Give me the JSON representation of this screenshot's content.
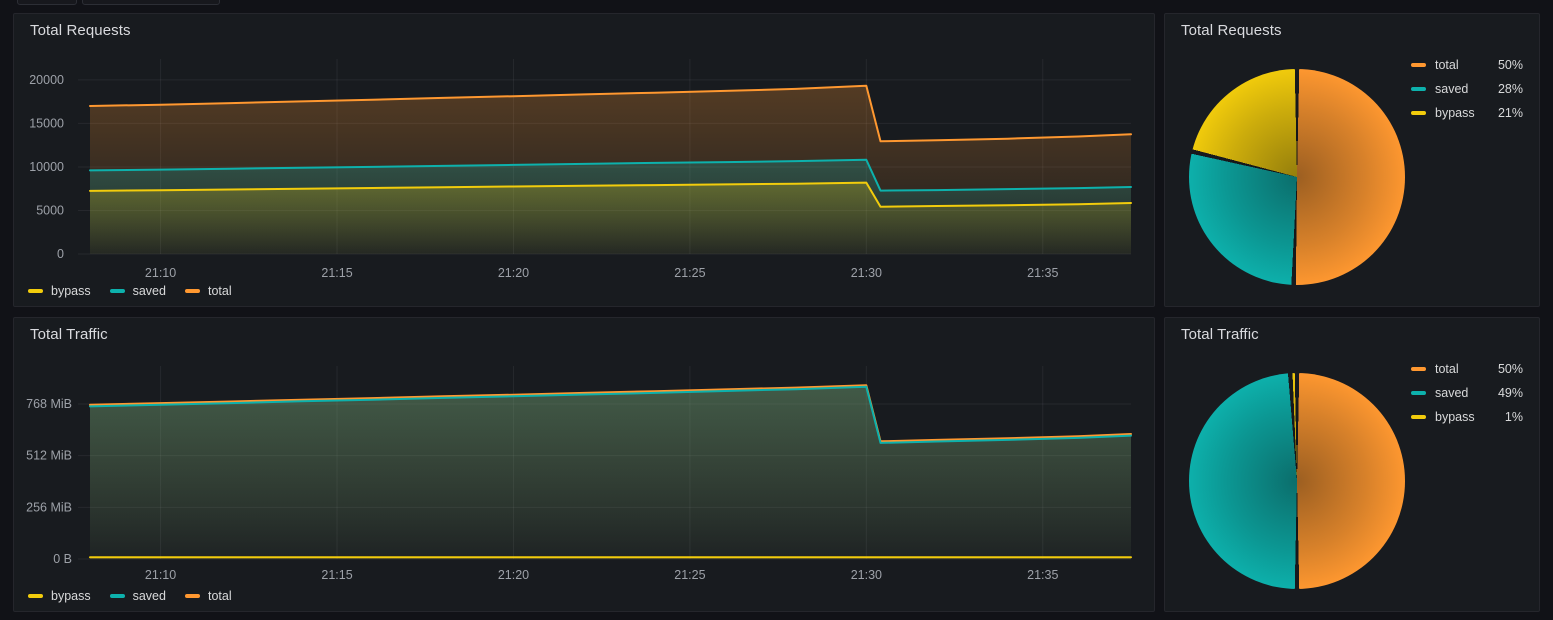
{
  "colors": {
    "page_bg": "#111217",
    "panel_bg": "#181b1f",
    "panel_border": "#25262c",
    "grid": "rgba(204,204,220,0.08)",
    "title_text": "#d9dade",
    "legend_text": "#d8d9da",
    "axis_text": "#9da1a8",
    "total": "#FF9830",
    "saved": "#0DB1AC",
    "bypass": "#F2CC0C"
  },
  "chart_data": [
    {
      "type": "line",
      "title": "Total Requests",
      "xlim": [
        0,
        29.5
      ],
      "ylim": [
        0,
        22400
      ],
      "x_ticks": [
        {
          "t": 2,
          "label": "21:10"
        },
        {
          "t": 7,
          "label": "21:15"
        },
        {
          "t": 12,
          "label": "21:20"
        },
        {
          "t": 17,
          "label": "21:25"
        },
        {
          "t": 22,
          "label": "21:30"
        },
        {
          "t": 27,
          "label": "21:35"
        }
      ],
      "y_ticks": [
        {
          "v": 0,
          "label": "0"
        },
        {
          "v": 5000,
          "label": "5000"
        },
        {
          "v": 10000,
          "label": "10000"
        },
        {
          "v": 15000,
          "label": "15000"
        },
        {
          "v": 20000,
          "label": "20000"
        }
      ],
      "x": [
        0,
        2,
        4,
        6,
        8,
        10,
        12,
        14,
        16,
        18,
        20,
        22,
        22.4,
        24,
        26,
        28,
        29.5
      ],
      "series": [
        {
          "name": "total",
          "color": "#FF9830",
          "values": [
            17000,
            17150,
            17330,
            17530,
            17720,
            17930,
            18130,
            18330,
            18530,
            18740,
            18960,
            19320,
            12950,
            13060,
            13250,
            13500,
            13750
          ]
        },
        {
          "name": "saved",
          "color": "#0DB1AC",
          "values": [
            9600,
            9700,
            9800,
            9900,
            10010,
            10120,
            10240,
            10350,
            10460,
            10560,
            10670,
            10820,
            7280,
            7340,
            7450,
            7570,
            7700
          ]
        },
        {
          "name": "bypass",
          "color": "#F2CC0C",
          "values": [
            7250,
            7330,
            7410,
            7500,
            7580,
            7660,
            7750,
            7830,
            7910,
            7990,
            8070,
            8200,
            5430,
            5510,
            5600,
            5710,
            5860
          ]
        }
      ],
      "legend": [
        "bypass",
        "saved",
        "total"
      ]
    },
    {
      "type": "pie",
      "title": "Total Requests",
      "slices": [
        {
          "label": "total",
          "pct": 50,
          "pct_label": "50%",
          "color": "#FF9830"
        },
        {
          "label": "saved",
          "pct": 28,
          "pct_label": "28%",
          "color": "#0DB1AC"
        },
        {
          "label": "bypass",
          "pct": 21,
          "pct_label": "21%",
          "color": "#F2CC0C"
        }
      ]
    },
    {
      "type": "line",
      "title": "Total Traffic",
      "unit": "MiB",
      "xlim": [
        0,
        29.5
      ],
      "ylim": [
        0,
        956
      ],
      "x_ticks": [
        {
          "t": 2,
          "label": "21:10"
        },
        {
          "t": 7,
          "label": "21:15"
        },
        {
          "t": 12,
          "label": "21:20"
        },
        {
          "t": 17,
          "label": "21:25"
        },
        {
          "t": 22,
          "label": "21:30"
        },
        {
          "t": 27,
          "label": "21:35"
        }
      ],
      "y_ticks": [
        {
          "v": 0,
          "label": "0 B"
        },
        {
          "v": 256,
          "label": "256 MiB"
        },
        {
          "v": 512,
          "label": "512 MiB"
        },
        {
          "v": 768,
          "label": "768 MiB"
        }
      ],
      "x": [
        0,
        2,
        4,
        6,
        8,
        10,
        12,
        14,
        16,
        18,
        20,
        22,
        22.4,
        24,
        26,
        28,
        29.5
      ],
      "series": [
        {
          "name": "total",
          "color": "#FF9830",
          "values": [
            764,
            772,
            780,
            789,
            797,
            806,
            814,
            823,
            831,
            840,
            849,
            861,
            583,
            590,
            598,
            608,
            619
          ]
        },
        {
          "name": "saved",
          "color": "#0DB1AC",
          "values": [
            756,
            764,
            772,
            781,
            789,
            798,
            806,
            815,
            823,
            832,
            841,
            853,
            575,
            582,
            590,
            600,
            611
          ]
        },
        {
          "name": "bypass",
          "color": "#F2CC0C",
          "values": [
            9,
            9,
            9,
            9,
            9,
            9,
            9,
            9,
            9,
            9,
            9,
            9,
            9,
            9,
            9,
            9,
            9
          ]
        }
      ],
      "legend": [
        "bypass",
        "saved",
        "total"
      ]
    },
    {
      "type": "pie",
      "title": "Total Traffic",
      "slices": [
        {
          "label": "total",
          "pct": 50,
          "pct_label": "50%",
          "color": "#FF9830"
        },
        {
          "label": "saved",
          "pct": 49,
          "pct_label": "49%",
          "color": "#0DB1AC"
        },
        {
          "label": "bypass",
          "pct": 1,
          "pct_label": "1%",
          "color": "#F2CC0C"
        }
      ]
    }
  ]
}
